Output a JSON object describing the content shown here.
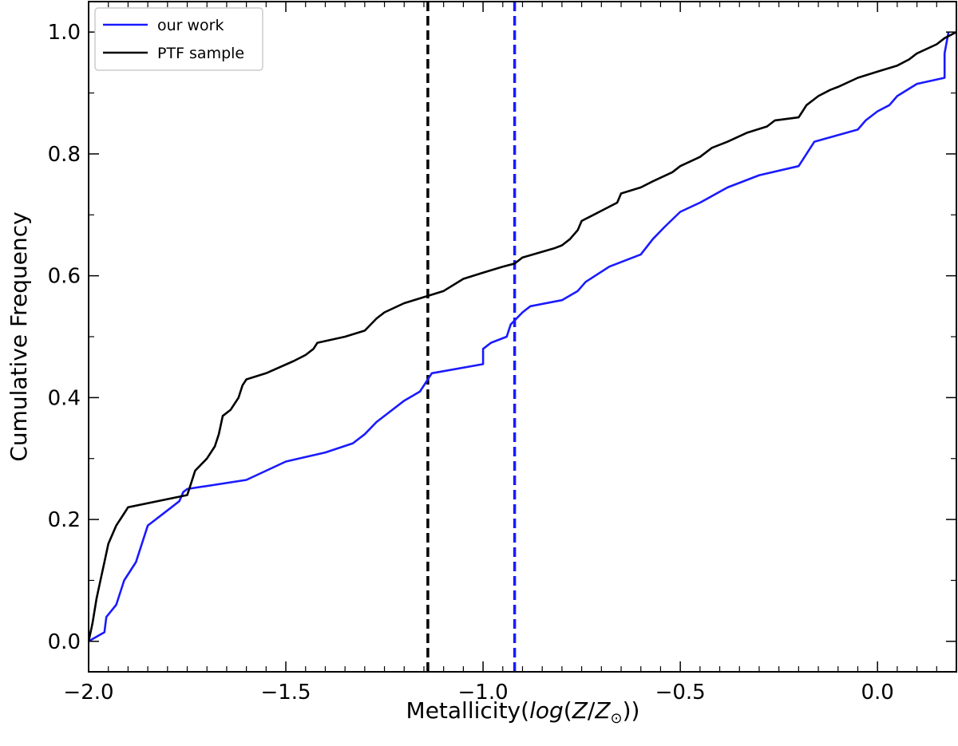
{
  "chart_data": {
    "type": "line",
    "xlabel_prefix": "Metallicity",
    "xlabel_log": "log",
    "xlabel_Z": "Z",
    "xlabel_Zsun_sub": "⊙",
    "ylabel": "Cumulative Frequency",
    "xlim": [
      -2.0,
      0.2
    ],
    "ylim": [
      -0.05,
      1.05
    ],
    "x_ticks": [
      -2.0,
      -1.5,
      -1.0,
      -0.5,
      0.0
    ],
    "x_tick_labels": [
      "−2.0",
      "−1.5",
      "−1.0",
      "−0.5",
      "0.0"
    ],
    "y_ticks": [
      0.0,
      0.2,
      0.4,
      0.6,
      0.8,
      1.0
    ],
    "y_tick_labels": [
      "0.0",
      "0.2",
      "0.4",
      "0.6",
      "0.8",
      "1.0"
    ],
    "legend_position": "upper-left",
    "series": [
      {
        "name": "our work",
        "color": "#1a1aff",
        "style": "step-cdf",
        "x": [
          -2.0,
          -1.96,
          -1.955,
          -1.93,
          -1.91,
          -1.88,
          -1.85,
          -1.84,
          -1.82,
          -1.79,
          -1.77,
          -1.76,
          -1.75,
          -1.6,
          -1.5,
          -1.4,
          -1.33,
          -1.3,
          -1.27,
          -1.2,
          -1.16,
          -1.15,
          -1.14,
          -1.13,
          -1.0,
          -1.0,
          -0.98,
          -0.94,
          -0.93,
          -0.9,
          -0.89,
          -0.88,
          -0.8,
          -0.76,
          -0.74,
          -0.68,
          -0.6,
          -0.57,
          -0.54,
          -0.5,
          -0.45,
          -0.38,
          -0.3,
          -0.2,
          -0.18,
          -0.16,
          -0.05,
          -0.03,
          0.0,
          0.03,
          0.05,
          0.1,
          0.17,
          0.17,
          0.18
        ],
        "y": [
          0.0,
          0.015,
          0.04,
          0.06,
          0.1,
          0.13,
          0.19,
          0.195,
          0.205,
          0.22,
          0.23,
          0.245,
          0.25,
          0.265,
          0.295,
          0.31,
          0.325,
          0.34,
          0.36,
          0.395,
          0.41,
          0.42,
          0.43,
          0.44,
          0.455,
          0.48,
          0.49,
          0.5,
          0.52,
          0.54,
          0.545,
          0.55,
          0.56,
          0.575,
          0.59,
          0.615,
          0.635,
          0.66,
          0.68,
          0.705,
          0.72,
          0.745,
          0.765,
          0.78,
          0.8,
          0.82,
          0.84,
          0.855,
          0.87,
          0.88,
          0.895,
          0.915,
          0.925,
          0.965,
          1.0
        ]
      },
      {
        "name": "PTF sample",
        "color": "#000000",
        "style": "step-cdf",
        "x": [
          -2.0,
          -1.99,
          -1.98,
          -1.97,
          -1.96,
          -1.95,
          -1.93,
          -1.91,
          -1.9,
          -1.75,
          -1.74,
          -1.73,
          -1.7,
          -1.68,
          -1.67,
          -1.66,
          -1.64,
          -1.62,
          -1.61,
          -1.6,
          -1.55,
          -1.48,
          -1.45,
          -1.43,
          -1.42,
          -1.35,
          -1.3,
          -1.27,
          -1.25,
          -1.2,
          -1.1,
          -1.05,
          -1.0,
          -0.95,
          -0.92,
          -0.9,
          -0.82,
          -0.8,
          -0.78,
          -0.76,
          -0.75,
          -0.72,
          -0.69,
          -0.66,
          -0.65,
          -0.6,
          -0.57,
          -0.52,
          -0.5,
          -0.45,
          -0.42,
          -0.38,
          -0.33,
          -0.28,
          -0.26,
          -0.2,
          -0.19,
          -0.18,
          -0.15,
          -0.12,
          -0.1,
          -0.05,
          0.0,
          0.05,
          0.08,
          0.1,
          0.15,
          0.17,
          0.2
        ],
        "y": [
          0.0,
          0.03,
          0.07,
          0.1,
          0.13,
          0.16,
          0.19,
          0.21,
          0.22,
          0.24,
          0.26,
          0.28,
          0.3,
          0.32,
          0.34,
          0.37,
          0.38,
          0.4,
          0.42,
          0.43,
          0.44,
          0.46,
          0.47,
          0.48,
          0.49,
          0.5,
          0.51,
          0.53,
          0.54,
          0.555,
          0.575,
          0.595,
          0.605,
          0.615,
          0.62,
          0.63,
          0.645,
          0.65,
          0.66,
          0.675,
          0.69,
          0.7,
          0.71,
          0.72,
          0.735,
          0.745,
          0.755,
          0.77,
          0.78,
          0.795,
          0.81,
          0.82,
          0.835,
          0.845,
          0.855,
          0.86,
          0.87,
          0.88,
          0.895,
          0.905,
          0.91,
          0.925,
          0.935,
          0.945,
          0.955,
          0.965,
          0.98,
          0.99,
          1.0
        ]
      }
    ],
    "vlines": [
      {
        "x": -1.14,
        "color": "#000000",
        "style": "dashed"
      },
      {
        "x": -0.92,
        "color": "#1a1aff",
        "style": "dashed"
      }
    ]
  }
}
